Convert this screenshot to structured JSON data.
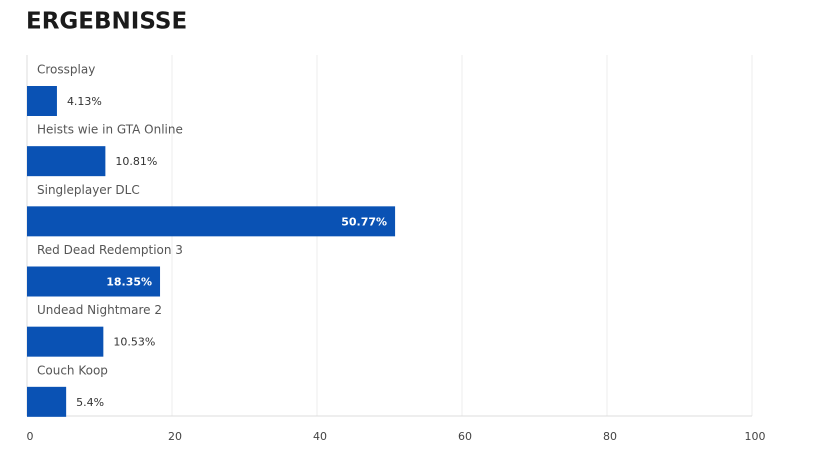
{
  "chart_data": {
    "type": "bar",
    "orientation": "horizontal",
    "title": "ERGEBNISSE",
    "categories": [
      "Crossplay",
      "Heists wie in GTA Online",
      "Singleplayer DLC",
      "Red Dead Redemption 3",
      "Undead Nightmare 2",
      "Couch Koop"
    ],
    "values": [
      4.13,
      10.81,
      50.77,
      18.35,
      10.53,
      5.4
    ],
    "value_labels": [
      "4.13%",
      "10.81%",
      "50.77%",
      "18.35%",
      "10.53%",
      "5.4%"
    ],
    "color": "#0a52b4",
    "xlim": [
      0,
      100
    ],
    "xticks": [
      0,
      20,
      40,
      60,
      80,
      100
    ],
    "grid": true
  }
}
